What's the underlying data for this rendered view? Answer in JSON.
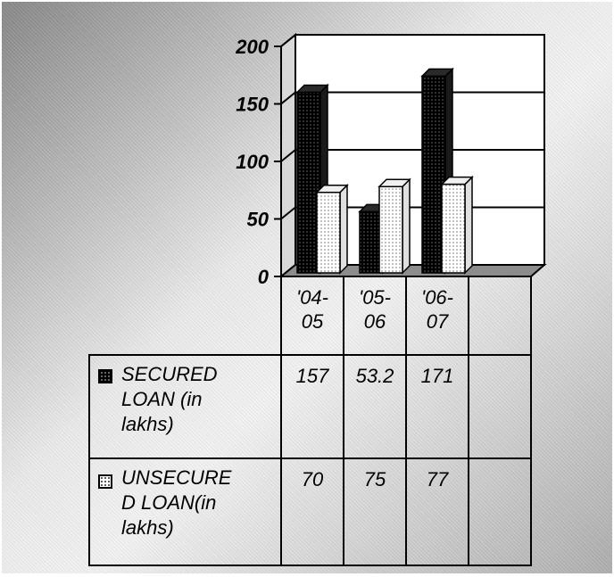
{
  "chart_data": {
    "type": "bar",
    "categories": [
      "'04-05",
      "'05-06",
      "'06-07"
    ],
    "series": [
      {
        "name": "SECURED LOAN (in lakhs)",
        "values": [
          157,
          53.2,
          171
        ],
        "color": "#000000"
      },
      {
        "name": "UNSECURED LOAN(in lakhs)",
        "values": [
          70,
          75,
          77
        ],
        "color": "#ffffff"
      }
    ],
    "ylim": [
      0,
      200
    ],
    "yticks": [
      0,
      50,
      100,
      150,
      200
    ],
    "grid": true,
    "legend": "data-table"
  },
  "table": {
    "categories_lines": [
      [
        "'04-",
        "05"
      ],
      [
        "'05-",
        "06"
      ],
      [
        "'06-",
        "07"
      ]
    ],
    "rows": [
      {
        "label_lines": [
          "SECURED",
          "LOAN (in",
          "lakhs)"
        ],
        "values": [
          "157",
          "53.2",
          "171"
        ]
      },
      {
        "label_lines": [
          "UNSECURE",
          "D LOAN(in",
          "lakhs)"
        ],
        "values": [
          "70",
          "75",
          "77"
        ]
      }
    ]
  }
}
